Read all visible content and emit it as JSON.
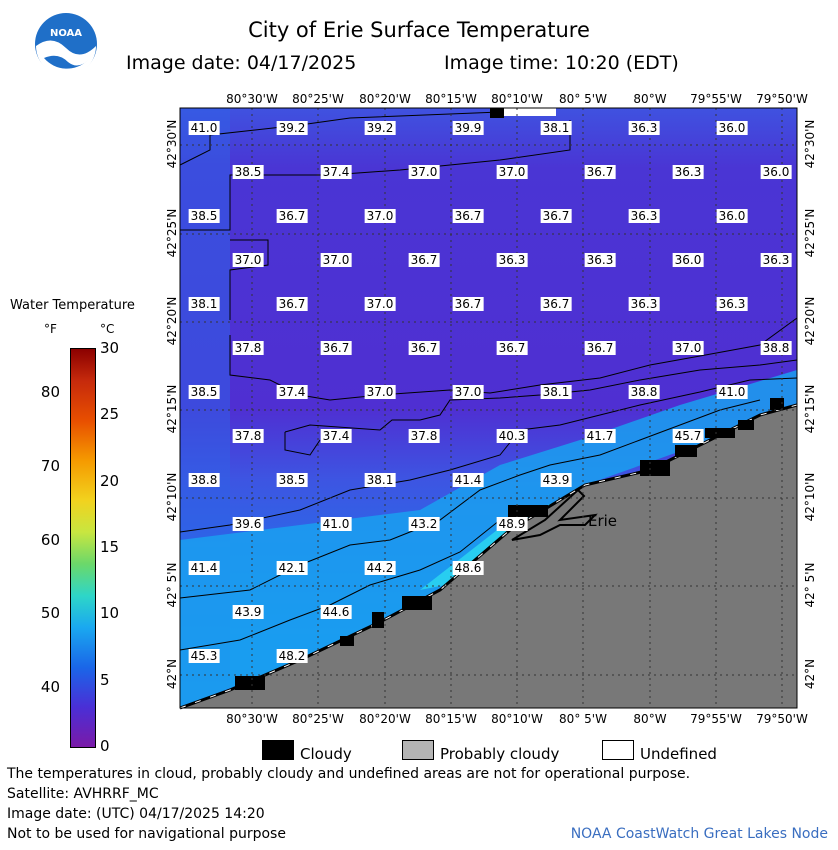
{
  "header": {
    "title": "City of Erie Surface Temperature",
    "date_label": "Image date: 04/17/2025",
    "time_label": "Image time: 10:20 (EDT)",
    "logo_text": "NOAA"
  },
  "map": {
    "lon_labels": [
      "80°30'W",
      "80°25'W",
      "80°20'W",
      "80°15'W",
      "80°10'W",
      "80° 5'W",
      "80°W",
      "79°55'W",
      "79°50'W"
    ],
    "lat_labels": [
      "42°30'N",
      "42°25'N",
      "42°20'N",
      "42°15'N",
      "42°10'N",
      "42° 5'N",
      "42°N"
    ],
    "city_label": "Erie",
    "land_color": "#787878",
    "water_colors": {
      "cold": "#4a2bd6",
      "mid": "#2a66e8",
      "warm": "#1aa8f0",
      "warmest": "#2ad6f0"
    },
    "temperatures": [
      [
        "41.0",
        "39.2",
        "39.2",
        "39.9",
        "38.1",
        "36.3",
        "36.0"
      ],
      [
        "38.5",
        "37.4",
        "37.0",
        "37.0",
        "36.7",
        "36.3",
        "36.0"
      ],
      [
        "38.5",
        "36.7",
        "37.0",
        "36.7",
        "36.7",
        "36.3",
        "36.0"
      ],
      [
        "37.0",
        "37.0",
        "36.7",
        "36.3",
        "36.3",
        "36.0",
        "36.3"
      ],
      [
        "38.1",
        "36.7",
        "37.0",
        "36.7",
        "36.7",
        "36.3",
        "36.3"
      ],
      [
        "37.8",
        "36.7",
        "36.7",
        "36.7",
        "36.7",
        "37.0",
        "38.8"
      ],
      [
        "38.5",
        "37.4",
        "37.0",
        "37.0",
        "38.1",
        "38.8",
        "41.0"
      ],
      [
        "37.8",
        "37.4",
        "37.8",
        "40.3",
        "41.7",
        "45.7"
      ],
      [
        "38.8",
        "38.5",
        "38.1",
        "41.4",
        "43.9"
      ],
      [
        "39.6",
        "41.0",
        "43.2",
        "48.9"
      ],
      [
        "41.4",
        "42.1",
        "44.2",
        "48.6"
      ],
      [
        "43.9",
        "44.6"
      ],
      [
        "45.3",
        "48.2"
      ]
    ]
  },
  "legend": {
    "title": "Water Temperature",
    "unit_f": "°F",
    "unit_c": "°C",
    "f_ticks": [
      "80",
      "70",
      "60",
      "50",
      "40"
    ],
    "c_ticks": [
      "30",
      "25",
      "20",
      "15",
      "10",
      "5",
      "0"
    ]
  },
  "key": {
    "cloudy": "Cloudy",
    "probably_cloudy": "Probably cloudy",
    "undefined": "Undefined"
  },
  "footer": {
    "disclaimer": "The temperatures in cloud, probably cloudy and undefined areas are not for operational purpose.",
    "satellite": "Satellite: AVHRRF_MC",
    "utc_date": "Image date: (UTC) 04/17/2025  14:20",
    "nav_note": "Not to be used for navigational purpose",
    "credit": "NOAA CoastWatch Great Lakes Node"
  }
}
